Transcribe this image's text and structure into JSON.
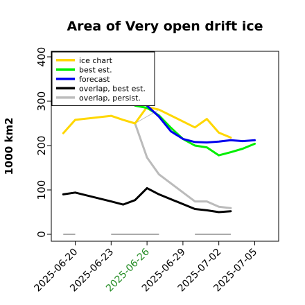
{
  "chart_data": {
    "type": "line",
    "title": "Area of Very open drift ice",
    "xlabel": "",
    "ylabel": "1000 km2",
    "ylim": [
      0,
      400
    ],
    "yticks": [
      0,
      100,
      200,
      300,
      400
    ],
    "xticks": [
      {
        "label": "2025-06-20",
        "color": "#000000"
      },
      {
        "label": "2025-06-23",
        "color": "#000000"
      },
      {
        "label": "2025-06-26",
        "color": "#228B22"
      },
      {
        "label": "2025-06-29",
        "color": "#000000"
      },
      {
        "label": "2025-07-02",
        "color": "#000000"
      },
      {
        "label": "2025-07-05",
        "color": "#000000"
      }
    ],
    "xlim": [
      "2025-06-18",
      "2025-07-07"
    ],
    "legend_position": "top-left",
    "grid": false,
    "series": [
      {
        "name": "ice chart",
        "color": "#FFD700",
        "points": [
          [
            "2025-06-19",
            228
          ],
          [
            "2025-06-20",
            258
          ],
          [
            "2025-06-23",
            267
          ],
          [
            "2025-06-24",
            258
          ],
          [
            "2025-06-25",
            250
          ],
          [
            "2025-06-26",
            287
          ],
          [
            "2025-06-27",
            281
          ],
          [
            "2025-06-30",
            241
          ],
          [
            "2025-07-01",
            260
          ],
          [
            "2025-07-02",
            229
          ],
          [
            "2025-07-03",
            218
          ]
        ]
      },
      {
        "name": "best est.",
        "color": "#00EE00",
        "points": [
          [
            "2025-06-25",
            290
          ],
          [
            "2025-06-26",
            285
          ],
          [
            "2025-06-27",
            268
          ],
          [
            "2025-06-28",
            240
          ],
          [
            "2025-06-29",
            215
          ],
          [
            "2025-06-30",
            200
          ],
          [
            "2025-07-01",
            196
          ],
          [
            "2025-07-02",
            178
          ],
          [
            "2025-07-03",
            185
          ],
          [
            "2025-07-04",
            193
          ],
          [
            "2025-07-05",
            204
          ]
        ]
      },
      {
        "name": "forecast",
        "color": "#0000EE",
        "points": [
          [
            "2025-06-26",
            290
          ],
          [
            "2025-06-27",
            265
          ],
          [
            "2025-06-28",
            232
          ],
          [
            "2025-06-29",
            215
          ],
          [
            "2025-06-30",
            208
          ],
          [
            "2025-07-01",
            207
          ],
          [
            "2025-07-02",
            209
          ],
          [
            "2025-07-03",
            212
          ],
          [
            "2025-07-04",
            210
          ],
          [
            "2025-07-05",
            212
          ]
        ]
      },
      {
        "name": "overlap, best est.",
        "color": "#000000",
        "points": [
          [
            "2025-06-19",
            90
          ],
          [
            "2025-06-20",
            94
          ],
          [
            "2025-06-23",
            74
          ],
          [
            "2025-06-24",
            67
          ],
          [
            "2025-06-25",
            77
          ],
          [
            "2025-06-26",
            104
          ],
          [
            "2025-06-27",
            90
          ],
          [
            "2025-06-30",
            57
          ],
          [
            "2025-07-01",
            54
          ],
          [
            "2025-07-02",
            50
          ],
          [
            "2025-07-03",
            52
          ]
        ]
      },
      {
        "name": "overlap, persist.",
        "color": "#BBBBBB",
        "points": [
          [
            "2025-06-25",
            250
          ],
          [
            "2025-06-26",
            173
          ],
          [
            "2025-06-27",
            135
          ],
          [
            "2025-06-30",
            74
          ],
          [
            "2025-07-01",
            74
          ],
          [
            "2025-07-02",
            62
          ],
          [
            "2025-07-03",
            59
          ]
        ]
      },
      {
        "color": "#BBBBBB",
        "points": [
          [
            "2025-06-25",
            250
          ],
          [
            "2025-06-27",
            281
          ]
        ]
      },
      {
        "color": "#BBBBBB",
        "points": [
          [
            "2025-06-27",
            135
          ],
          [
            "2025-06-30",
            74
          ]
        ]
      }
    ],
    "zero_segments": [
      {
        "color": "#AAAAAA",
        "from": "2025-06-19",
        "to": "2025-06-20"
      },
      {
        "color": "#AAAAAA",
        "from": "2025-06-23",
        "to": "2025-06-27"
      },
      {
        "color": "#AAAAAA",
        "from": "2025-06-30",
        "to": "2025-07-03"
      }
    ]
  }
}
